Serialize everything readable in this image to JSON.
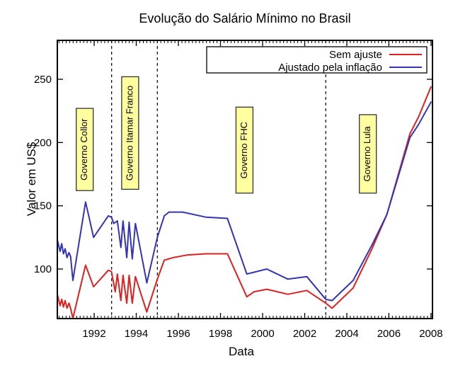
{
  "title": "Evolução do Salário Mínimo no Brasil",
  "axes": {
    "x_label": "Data",
    "y_label": "Valor em US$"
  },
  "legend": {
    "entries": [
      {
        "label": "Sem ajuste",
        "color": "#dd2020"
      },
      {
        "label": "Ajustado pela inflação",
        "color": "#3434b4"
      }
    ]
  },
  "colors": {
    "axis": "#000000",
    "background": "#ffffff",
    "unadjusted_line": "#dd2020",
    "adjusted_line": "#3434b4",
    "annotation_box_fill": "#ffffa0",
    "annotation_box_border": "#333333",
    "dashed_line": "#000000"
  },
  "chart_data": {
    "type": "line",
    "title": "Evolução do Salário Mínimo no Brasil",
    "xlabel": "Data",
    "ylabel": "Valor em US$",
    "xlim": [
      1990.25,
      2008.07
    ],
    "ylim": [
      60.8,
      280.8
    ],
    "x_ticks": [
      1992,
      1994,
      1996,
      1998,
      2000,
      2002,
      2004,
      2006,
      2008
    ],
    "y_ticks": [
      100,
      150,
      200,
      250
    ],
    "minor_x_tick_step_years": 0.1666667,
    "grid": false,
    "legend_position": "top-right-inside",
    "dashed_vertical_lines_years": [
      1992.83,
      1995.0,
      2003.0
    ],
    "government_annotations": [
      {
        "label": "Governo Collor",
        "box_center_year": 1991.55,
        "box_value_top": 227,
        "box_value_bottom": 162
      },
      {
        "label": "Governo Itamar Franco",
        "box_center_year": 1993.71,
        "box_value_top": 252,
        "box_value_bottom": 163
      },
      {
        "label": "Governo FHC",
        "box_center_year": 1999.14,
        "box_value_top": 228,
        "box_value_bottom": 160
      },
      {
        "label": "Governo Lula",
        "box_center_year": 2005.0,
        "box_value_top": 222,
        "box_value_bottom": 160
      }
    ],
    "series": [
      {
        "name": "Sem ajuste",
        "color": "#dd2020",
        "x": [
          1990.25,
          1990.38,
          1990.46,
          1990.54,
          1990.62,
          1990.71,
          1990.8,
          1990.88,
          1990.99,
          1991.59,
          1991.97,
          1992.67,
          1992.82,
          1993.0,
          1993.1,
          1993.27,
          1993.37,
          1993.55,
          1993.66,
          1993.81,
          1993.96,
          1994.5,
          1995.0,
          1995.33,
          1995.75,
          1996.4,
          1997.3,
          1998.33,
          1999.25,
          1999.6,
          2000.2,
          2001.2,
          2002.1,
          2003.0,
          2003.3,
          2004.3,
          2005.2,
          2005.9,
          2007.0,
          2007.4,
          2008.0
        ],
        "y": [
          80,
          71,
          76,
          70,
          75,
          69,
          73,
          69,
          61,
          103,
          86,
          99,
          98,
          82,
          96,
          75,
          95,
          73,
          95,
          73,
          94,
          66,
          92,
          107,
          109,
          111,
          112,
          112,
          78,
          82,
          84,
          80,
          83,
          73,
          69,
          85,
          116,
          143,
          207,
          220,
          244
        ]
      },
      {
        "name": "Ajustado pela inflação",
        "color": "#3434b4",
        "x": [
          1990.25,
          1990.38,
          1990.46,
          1990.54,
          1990.62,
          1990.71,
          1990.8,
          1990.88,
          1990.99,
          1991.59,
          1991.97,
          1992.67,
          1992.82,
          1992.93,
          1993.1,
          1993.27,
          1993.37,
          1993.55,
          1993.66,
          1993.81,
          1993.96,
          1994.5,
          1995.0,
          1995.33,
          1995.55,
          1996.2,
          1997.3,
          1998.33,
          1999.25,
          2000.2,
          2001.2,
          2002.1,
          2003.0,
          2003.3,
          2004.3,
          2005.2,
          2005.9,
          2007.0,
          2007.4,
          2008.0
        ],
        "y": [
          123,
          114,
          120,
          112,
          116,
          109,
          113,
          110,
          91,
          153,
          125,
          142,
          141,
          136,
          138,
          117,
          138,
          109,
          137,
          108,
          136,
          89,
          125,
          142,
          145,
          145,
          141,
          140,
          96,
          100,
          92,
          94,
          76,
          75,
          91,
          119,
          143,
          204,
          214,
          232
        ]
      }
    ]
  }
}
